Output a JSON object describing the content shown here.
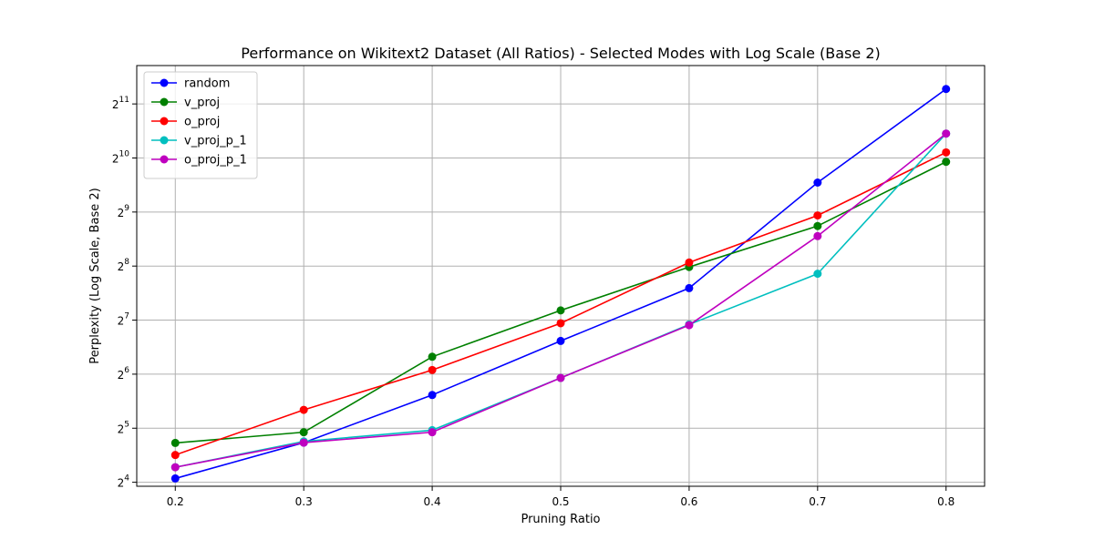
{
  "chart_data": {
    "type": "line",
    "title": "Performance on Wikitext2 Dataset (All Ratios) - Selected Modes with Log Scale (Base 2)",
    "xlabel": "Pruning Ratio",
    "ylabel": "Perplexity (Log Scale, Base 2)",
    "x": [
      0.2,
      0.3,
      0.4,
      0.5,
      0.6,
      0.7,
      0.8
    ],
    "x_tick_labels": [
      "0.2",
      "0.3",
      "0.4",
      "0.5",
      "0.6",
      "0.7",
      "0.8"
    ],
    "y_scale": "log2",
    "y_tick_labels": [
      {
        "base": "2",
        "exp": "4",
        "value": 16
      },
      {
        "base": "2",
        "exp": "5",
        "value": 32
      },
      {
        "base": "2",
        "exp": "6",
        "value": 64
      },
      {
        "base": "2",
        "exp": "7",
        "value": 128
      },
      {
        "base": "2",
        "exp": "8",
        "value": 256
      },
      {
        "base": "2",
        "exp": "9",
        "value": 512
      },
      {
        "base": "2",
        "exp": "10",
        "value": 1024
      },
      {
        "base": "2",
        "exp": "11",
        "value": 2048
      }
    ],
    "xlim": [
      0.17,
      0.83
    ],
    "ylim": [
      15.2,
      3350
    ],
    "grid": true,
    "legend_position": "top-left",
    "series": [
      {
        "name": "random",
        "color": "#0000ff",
        "values": [
          16.8,
          26.6,
          49.0,
          98.0,
          193.0,
          747.0,
          2480.0
        ]
      },
      {
        "name": "v_proj",
        "color": "#008000",
        "values": [
          26.5,
          30.4,
          80.0,
          145.0,
          253.0,
          428.0,
          975.0
        ]
      },
      {
        "name": "o_proj",
        "color": "#ff0000",
        "values": [
          22.7,
          40.5,
          67.5,
          123.0,
          268.0,
          490.0,
          1100.0
        ]
      },
      {
        "name": "v_proj_p_1",
        "color": "#00bfbf",
        "values": [
          19.4,
          27.0,
          31.2,
          61.0,
          121.0,
          232.0,
          1400.0
        ]
      },
      {
        "name": "o_proj_p_1",
        "color": "#bf00bf",
        "values": [
          19.4,
          26.6,
          30.4,
          61.0,
          120.0,
          376.0,
          1400.0
        ]
      }
    ]
  }
}
